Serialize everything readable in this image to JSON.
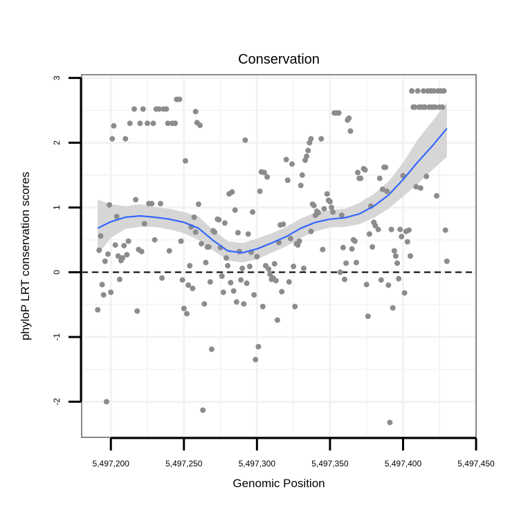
{
  "chart_data": {
    "type": "scatter",
    "title": "Conservation",
    "xlabel": "Genomic Position",
    "ylabel": "phyloP LRT conservation scores",
    "xlim": [
      5497180,
      5497450
    ],
    "ylim": [
      -2.55,
      3.05
    ],
    "x_ticks": [
      5497200,
      5497250,
      5497300,
      5497350,
      5497400,
      5497450
    ],
    "x_tick_labels": [
      "5,497,200",
      "5,497,250",
      "5,497,300",
      "5,497,350",
      "5,497,400",
      "5,497,450"
    ],
    "y_ticks": [
      -2,
      -1,
      0,
      1,
      2,
      3
    ],
    "y_tick_labels": [
      "-2",
      "-1",
      "0",
      "1",
      "2",
      "3"
    ],
    "grid": true,
    "reference_line": {
      "y": 0,
      "style": "dashed"
    },
    "colors": {
      "points": "#8c8c8c",
      "smooth_line": "#3366ff",
      "confidence_band": "#d6d6d6",
      "grid": "#f2f2f2",
      "panel_border": "#888888"
    },
    "series": [
      {
        "name": "scores",
        "points": [
          [
            5497191,
            -0.58
          ],
          [
            5497192,
            0.34
          ],
          [
            5497193,
            0.56
          ],
          [
            5497194,
            -0.19
          ],
          [
            5497195,
            -0.35
          ],
          [
            5497196,
            0.17
          ],
          [
            5497197,
            -2.0
          ],
          [
            5497198,
            0.28
          ],
          [
            5497199,
            1.04
          ],
          [
            5497200,
            -0.31
          ],
          [
            5497201,
            2.06
          ],
          [
            5497202,
            2.26
          ],
          [
            5497203,
            0.42
          ],
          [
            5497204,
            0.86
          ],
          [
            5497205,
            0.25
          ],
          [
            5497206,
            -0.11
          ],
          [
            5497207,
            0.18
          ],
          [
            5497208,
            0.22
          ],
          [
            5497209,
            0.41
          ],
          [
            5497210,
            2.06
          ],
          [
            5497211,
            0.27
          ],
          [
            5497212,
            0.48
          ],
          [
            5497213,
            2.3
          ],
          [
            5497216,
            2.52
          ],
          [
            5497217,
            1.12
          ],
          [
            5497218,
            -0.6
          ],
          [
            5497219,
            0.35
          ],
          [
            5497220,
            2.3
          ],
          [
            5497221,
            0.32
          ],
          [
            5497222,
            2.52
          ],
          [
            5497223,
            0.75
          ],
          [
            5497225,
            2.3
          ],
          [
            5497226,
            1.06
          ],
          [
            5497228,
            1.06
          ],
          [
            5497229,
            2.3
          ],
          [
            5497230,
            0.5
          ],
          [
            5497231,
            2.52
          ],
          [
            5497233,
            2.52
          ],
          [
            5497234,
            1.06
          ],
          [
            5497235,
            -0.09
          ],
          [
            5497236,
            2.52
          ],
          [
            5497238,
            2.52
          ],
          [
            5497239,
            2.3
          ],
          [
            5497240,
            0.33
          ],
          [
            5497242,
            2.3
          ],
          [
            5497244,
            2.3
          ],
          [
            5497245,
            2.67
          ],
          [
            5497247,
            2.67
          ],
          [
            5497248,
            0.48
          ],
          [
            5497249,
            -0.12
          ],
          [
            5497250,
            -0.56
          ],
          [
            5497251,
            1.72
          ],
          [
            5497252,
            -0.64
          ],
          [
            5497253,
            -0.2
          ],
          [
            5497254,
            0.1
          ],
          [
            5497255,
            0.7
          ],
          [
            5497256,
            -0.25
          ],
          [
            5497257,
            0.85
          ],
          [
            5497258,
            2.48
          ],
          [
            5497258,
            0.62
          ],
          [
            5497259,
            2.31
          ],
          [
            5497260,
            1.05
          ],
          [
            5497261,
            2.27
          ],
          [
            5497262,
            0.44
          ],
          [
            5497263,
            -2.13
          ],
          [
            5497264,
            -0.49
          ],
          [
            5497265,
            0.15
          ],
          [
            5497266,
            0.39
          ],
          [
            5497267,
            0.39
          ],
          [
            5497268,
            -0.15
          ],
          [
            5497269,
            -1.19
          ],
          [
            5497270,
            0.64
          ],
          [
            5497271,
            0.62
          ],
          [
            5497273,
            0.82
          ],
          [
            5497274,
            0.81
          ],
          [
            5497275,
            0.38
          ],
          [
            5497276,
            -0.06
          ],
          [
            5497277,
            -0.31
          ],
          [
            5497278,
            0.76
          ],
          [
            5497279,
            0.22
          ],
          [
            5497280,
            0.1
          ],
          [
            5497281,
            1.21
          ],
          [
            5497282,
            -0.16
          ],
          [
            5497283,
            1.24
          ],
          [
            5497284,
            -0.29
          ],
          [
            5497285,
            0.96
          ],
          [
            5497286,
            -0.46
          ],
          [
            5497287,
            0.61
          ],
          [
            5497288,
            0.32
          ],
          [
            5497289,
            -0.12
          ],
          [
            5497290,
            0.06
          ],
          [
            5497291,
            -0.49
          ],
          [
            5497292,
            2.04
          ],
          [
            5497293,
            -0.17
          ],
          [
            5497294,
            0.59
          ],
          [
            5497295,
            0.09
          ],
          [
            5497296,
            0.31
          ],
          [
            5497297,
            0.93
          ],
          [
            5497298,
            -0.35
          ],
          [
            5497299,
            -1.35
          ],
          [
            5497300,
            0.24
          ],
          [
            5497301,
            -1.15
          ],
          [
            5497302,
            1.25
          ],
          [
            5497303,
            1.55
          ],
          [
            5497304,
            -0.53
          ],
          [
            5497305,
            1.54
          ],
          [
            5497306,
            0.1
          ],
          [
            5497307,
            1.47
          ],
          [
            5497308,
            0.05
          ],
          [
            5497309,
            -0.03
          ],
          [
            5497310,
            -0.11
          ],
          [
            5497311,
            -0.09
          ],
          [
            5497312,
            0.13
          ],
          [
            5497313,
            -0.13
          ],
          [
            5497314,
            -0.74
          ],
          [
            5497315,
            0.46
          ],
          [
            5497316,
            0.73
          ],
          [
            5497317,
            -0.3
          ],
          [
            5497318,
            0.74
          ],
          [
            5497320,
            1.74
          ],
          [
            5497321,
            1.42
          ],
          [
            5497322,
            -0.15
          ],
          [
            5497323,
            0.52
          ],
          [
            5497324,
            1.67
          ],
          [
            5497325,
            0.09
          ],
          [
            5497326,
            -0.53
          ],
          [
            5497327,
            0.44
          ],
          [
            5497328,
            0.42
          ],
          [
            5497329,
            0.48
          ],
          [
            5497330,
            1.34
          ],
          [
            5497331,
            1.5
          ],
          [
            5497332,
            0.06
          ],
          [
            5497333,
            1.73
          ],
          [
            5497334,
            1.79
          ],
          [
            5497335,
            1.88
          ],
          [
            5497336,
            2.0
          ],
          [
            5497337,
            0.63
          ],
          [
            5497337,
            2.06
          ],
          [
            5497338,
            1.05
          ],
          [
            5497339,
            1.03
          ],
          [
            5497340,
            0.88
          ],
          [
            5497341,
            0.94
          ],
          [
            5497342,
            0.92
          ],
          [
            5497344,
            2.06
          ],
          [
            5497345,
            0.35
          ],
          [
            5497346,
            0.98
          ],
          [
            5497348,
            1.21
          ],
          [
            5497349,
            1.11
          ],
          [
            5497350,
            1.09
          ],
          [
            5497351,
            1.0
          ],
          [
            5497352,
            0.93
          ],
          [
            5497353,
            2.46
          ],
          [
            5497354,
            2.46
          ],
          [
            5497355,
            2.46
          ],
          [
            5497356,
            2.46
          ],
          [
            5497357,
            0.0
          ],
          [
            5497358,
            0.88
          ],
          [
            5497359,
            0.38
          ],
          [
            5497360,
            -0.11
          ],
          [
            5497361,
            0.14
          ],
          [
            5497362,
            2.35
          ],
          [
            5497363,
            2.38
          ],
          [
            5497364,
            2.18
          ],
          [
            5497365,
            0.36
          ],
          [
            5497366,
            0.5
          ],
          [
            5497367,
            0.48
          ],
          [
            5497368,
            0.15
          ],
          [
            5497369,
            1.54
          ],
          [
            5497370,
            1.45
          ],
          [
            5497371,
            1.45
          ],
          [
            5497373,
            1.6
          ],
          [
            5497374,
            1.58
          ],
          [
            5497375,
            -0.19
          ],
          [
            5497376,
            -0.68
          ],
          [
            5497377,
            0.59
          ],
          [
            5497378,
            1.02
          ],
          [
            5497379,
            0.39
          ],
          [
            5497380,
            0.77
          ],
          [
            5497381,
            0.72
          ],
          [
            5497383,
            0.66
          ],
          [
            5497384,
            1.45
          ],
          [
            5497385,
            -0.12
          ],
          [
            5497386,
            1.28
          ],
          [
            5497387,
            1.62
          ],
          [
            5497388,
            1.62
          ],
          [
            5497389,
            1.25
          ],
          [
            5497390,
            -0.2
          ],
          [
            5497391,
            -2.32
          ],
          [
            5497392,
            0.66
          ],
          [
            5497393,
            -0.55
          ],
          [
            5497394,
            0.33
          ],
          [
            5497395,
            0.25
          ],
          [
            5497396,
            0.14
          ],
          [
            5497397,
            -0.1
          ],
          [
            5497398,
            0.66
          ],
          [
            5497399,
            0.55
          ],
          [
            5497400,
            1.49
          ],
          [
            5497401,
            -0.32
          ],
          [
            5497402,
            0.63
          ],
          [
            5497403,
            0.47
          ],
          [
            5497404,
            0.65
          ],
          [
            5497405,
            0.25
          ],
          [
            5497406,
            2.8
          ],
          [
            5497407,
            2.55
          ],
          [
            5497408,
            2.55
          ],
          [
            5497409,
            1.32
          ],
          [
            5497410,
            2.8
          ],
          [
            5497411,
            2.55
          ],
          [
            5497412,
            1.3
          ],
          [
            5497413,
            2.55
          ],
          [
            5497414,
            2.8
          ],
          [
            5497415,
            2.55
          ],
          [
            5497416,
            1.48
          ],
          [
            5497417,
            2.8
          ],
          [
            5497418,
            2.55
          ],
          [
            5497419,
            2.8
          ],
          [
            5497420,
            2.55
          ],
          [
            5497421,
            2.8
          ],
          [
            5497422,
            2.55
          ],
          [
            5497423,
            1.18
          ],
          [
            5497424,
            2.8
          ],
          [
            5497425,
            2.55
          ],
          [
            5497426,
            2.8
          ],
          [
            5497427,
            2.55
          ],
          [
            5497428,
            2.8
          ],
          [
            5497429,
            0.65
          ],
          [
            5497430,
            0.17
          ]
        ]
      },
      {
        "name": "loess smooth",
        "points": [
          [
            5497191,
            0.68
          ],
          [
            5497200,
            0.78
          ],
          [
            5497210,
            0.85
          ],
          [
            5497220,
            0.87
          ],
          [
            5497230,
            0.85
          ],
          [
            5497240,
            0.82
          ],
          [
            5497250,
            0.77
          ],
          [
            5497260,
            0.68
          ],
          [
            5497270,
            0.49
          ],
          [
            5497280,
            0.33
          ],
          [
            5497290,
            0.3
          ],
          [
            5497300,
            0.36
          ],
          [
            5497310,
            0.45
          ],
          [
            5497320,
            0.55
          ],
          [
            5497330,
            0.68
          ],
          [
            5497340,
            0.77
          ],
          [
            5497350,
            0.82
          ],
          [
            5497360,
            0.84
          ],
          [
            5497370,
            0.9
          ],
          [
            5497380,
            1.02
          ],
          [
            5497390,
            1.19
          ],
          [
            5497400,
            1.43
          ],
          [
            5497410,
            1.7
          ],
          [
            5497420,
            1.95
          ],
          [
            5497430,
            2.22
          ]
        ]
      }
    ],
    "confidence_band": {
      "x": [
        5497191,
        5497200,
        5497210,
        5497220,
        5497230,
        5497240,
        5497250,
        5497260,
        5497270,
        5497280,
        5497290,
        5497300,
        5497310,
        5497320,
        5497330,
        5497340,
        5497350,
        5497360,
        5497370,
        5497380,
        5497390,
        5497400,
        5497410,
        5497420,
        5497430
      ],
      "lower": [
        0.27,
        0.53,
        0.67,
        0.7,
        0.7,
        0.66,
        0.6,
        0.5,
        0.34,
        0.18,
        0.15,
        0.2,
        0.3,
        0.4,
        0.53,
        0.63,
        0.69,
        0.7,
        0.74,
        0.84,
        0.98,
        1.17,
        1.36,
        1.58,
        1.78
      ],
      "upper": [
        1.12,
        1.05,
        1.02,
        1.05,
        1.01,
        0.98,
        0.93,
        0.86,
        0.65,
        0.48,
        0.45,
        0.52,
        0.6,
        0.7,
        0.83,
        0.92,
        0.96,
        0.98,
        1.07,
        1.21,
        1.4,
        1.69,
        2.05,
        2.33,
        2.62
      ]
    }
  }
}
